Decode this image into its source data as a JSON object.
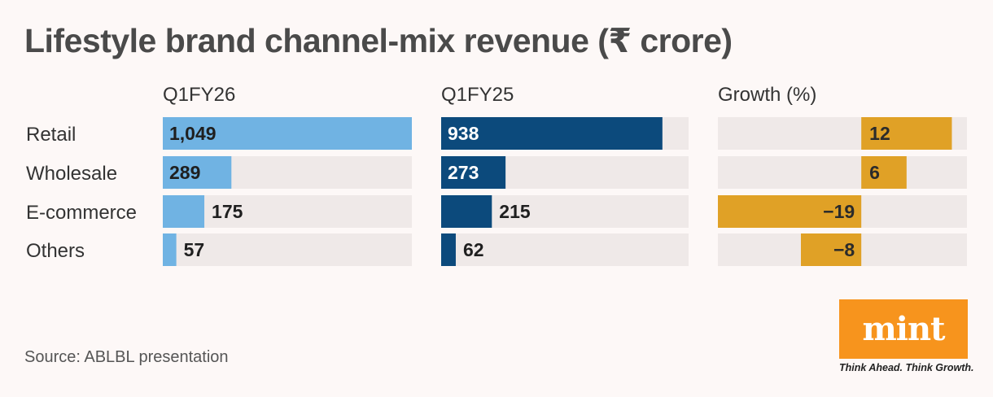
{
  "title": "Lifestyle brand channel-mix revenue (₹ crore)",
  "source": "Source: ABLBL presentation",
  "logo": {
    "word": "mint",
    "tagline": "Think Ahead. Think Growth."
  },
  "colors": {
    "q1fy26": "#70b3e3",
    "q1fy25": "#0c4a7c",
    "growth": "#e0a126",
    "track": "#efe9e8",
    "background": "#fdf8f7",
    "logo_bg": "#f7941d"
  },
  "chart_data": {
    "type": "bar",
    "orientation": "horizontal",
    "categories": [
      "Retail",
      "Wholesale",
      "E-commerce",
      "Others"
    ],
    "series": [
      {
        "name": "Q1FY26",
        "values": [
          1049,
          289,
          175,
          57
        ],
        "labels": [
          "1,049",
          "289",
          "175",
          "57"
        ]
      },
      {
        "name": "Q1FY25",
        "values": [
          938,
          273,
          215,
          62
        ],
        "labels": [
          "938",
          "273",
          "215",
          "62"
        ]
      },
      {
        "name": "Growth (%)",
        "values": [
          12,
          6,
          -19,
          -8
        ],
        "labels": [
          "12",
          "6",
          "−19",
          "−8"
        ]
      }
    ],
    "xlim_revenue": [
      0,
      1049
    ],
    "xlim_growth": [
      -19,
      14
    ],
    "title": "Lifestyle brand channel-mix revenue (₹ crore)"
  }
}
